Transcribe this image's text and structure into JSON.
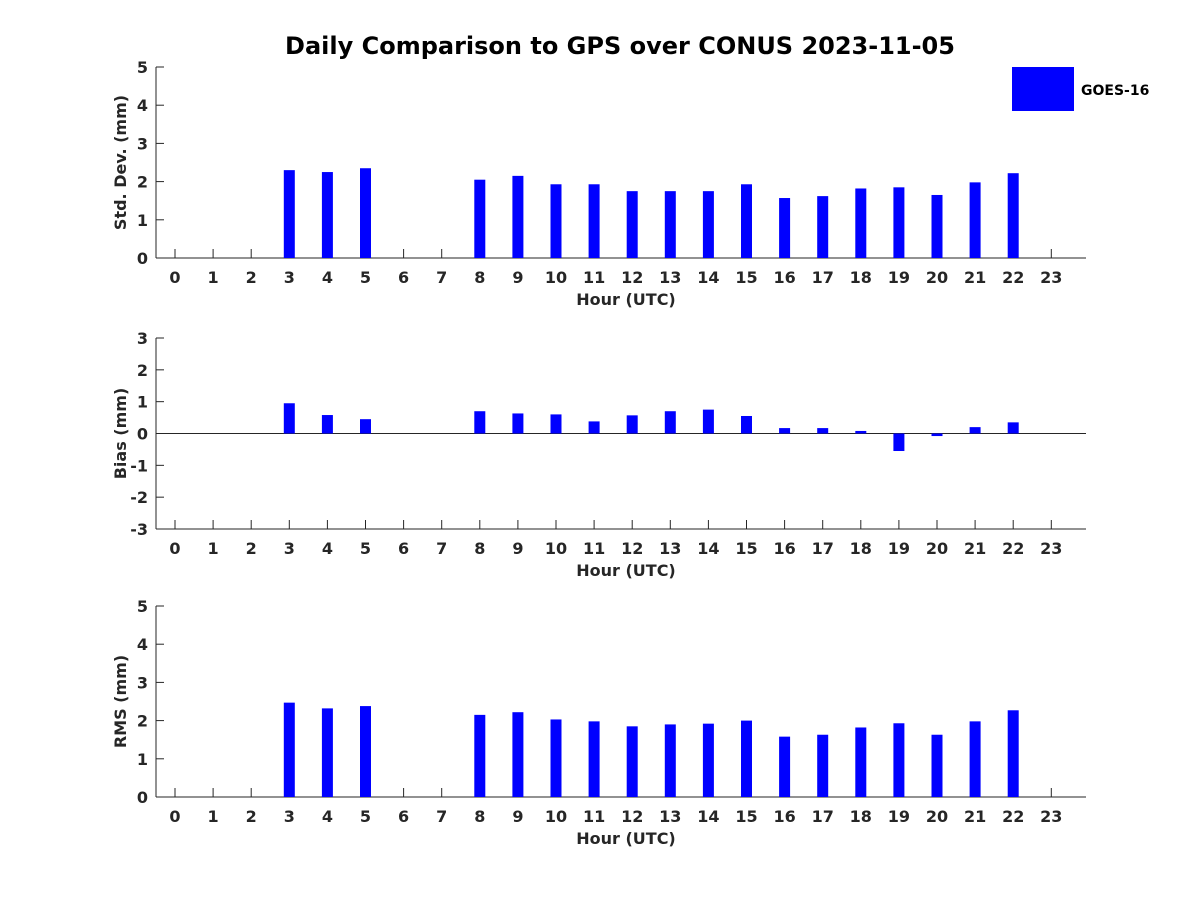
{
  "chart_title": "Daily Comparison to GPS over CONUS 2023-11-05",
  "legend": {
    "label": "GOES-16",
    "color": "#0000ff"
  },
  "chart_data": [
    {
      "type": "bar",
      "title": "Daily Comparison to GPS over CONUS 2023-11-05",
      "xlabel": "Hour (UTC)",
      "ylabel": "Std. Dev. (mm)",
      "categories": [
        "0",
        "1",
        "2",
        "3",
        "4",
        "5",
        "6",
        "7",
        "8",
        "9",
        "10",
        "11",
        "12",
        "13",
        "14",
        "15",
        "16",
        "17",
        "18",
        "19",
        "20",
        "21",
        "22",
        "23"
      ],
      "ylim": [
        0,
        5
      ],
      "yticks": [
        "0",
        "1",
        "2",
        "3",
        "4",
        "5"
      ],
      "series": [
        {
          "name": "GOES-16",
          "color": "#0000ff",
          "values": [
            null,
            null,
            null,
            2.3,
            2.25,
            2.35,
            null,
            null,
            2.05,
            2.15,
            1.93,
            1.93,
            1.75,
            1.75,
            1.75,
            1.93,
            1.57,
            1.62,
            1.82,
            1.85,
            1.65,
            1.98,
            2.22,
            null
          ]
        }
      ]
    },
    {
      "type": "bar",
      "xlabel": "Hour (UTC)",
      "ylabel": "Bias (mm)",
      "categories": [
        "0",
        "1",
        "2",
        "3",
        "4",
        "5",
        "6",
        "7",
        "8",
        "9",
        "10",
        "11",
        "12",
        "13",
        "14",
        "15",
        "16",
        "17",
        "18",
        "19",
        "20",
        "21",
        "22",
        "23"
      ],
      "ylim": [
        -3,
        3
      ],
      "yticks": [
        "-3",
        "-2",
        "-1",
        "0",
        "1",
        "2",
        "3"
      ],
      "zero_line": true,
      "series": [
        {
          "name": "GOES-16",
          "color": "#0000ff",
          "values": [
            null,
            null,
            null,
            0.95,
            0.58,
            0.45,
            null,
            null,
            0.7,
            0.63,
            0.6,
            0.38,
            0.57,
            0.7,
            0.75,
            0.55,
            0.17,
            0.17,
            0.08,
            -0.55,
            -0.08,
            0.2,
            0.35,
            null
          ]
        }
      ]
    },
    {
      "type": "bar",
      "xlabel": "Hour (UTC)",
      "ylabel": "RMS (mm)",
      "categories": [
        "0",
        "1",
        "2",
        "3",
        "4",
        "5",
        "6",
        "7",
        "8",
        "9",
        "10",
        "11",
        "12",
        "13",
        "14",
        "15",
        "16",
        "17",
        "18",
        "19",
        "20",
        "21",
        "22",
        "23"
      ],
      "ylim": [
        0,
        5
      ],
      "yticks": [
        "0",
        "1",
        "2",
        "3",
        "4",
        "5"
      ],
      "series": [
        {
          "name": "GOES-16",
          "color": "#0000ff",
          "values": [
            null,
            null,
            null,
            2.47,
            2.32,
            2.38,
            null,
            null,
            2.15,
            2.22,
            2.03,
            1.98,
            1.85,
            1.9,
            1.92,
            2.0,
            1.58,
            1.63,
            1.82,
            1.93,
            1.63,
            1.98,
            2.27,
            null
          ]
        }
      ]
    }
  ]
}
